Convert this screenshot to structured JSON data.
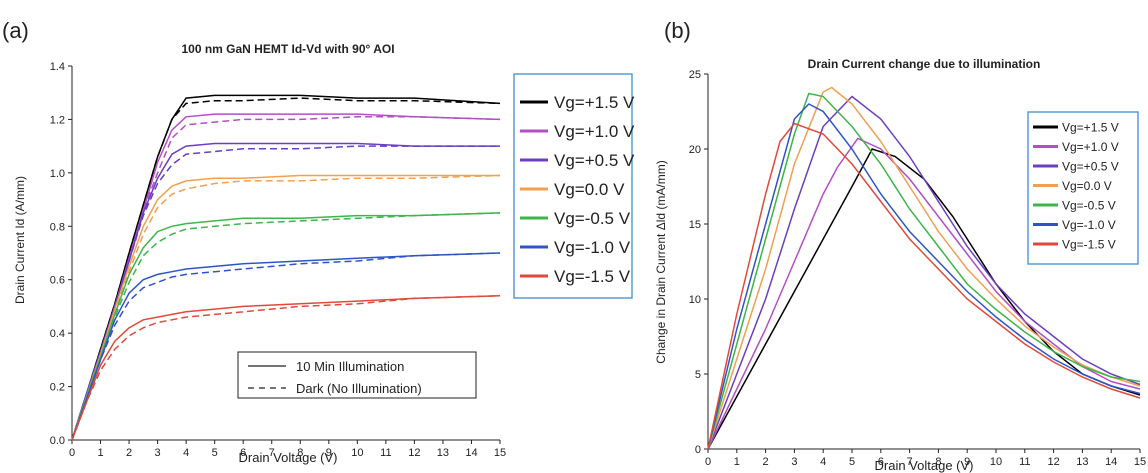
{
  "panels": [
    {
      "label": "(a)",
      "chart_data": {
        "type": "line",
        "title": "100 nm GaN HEMT Id-Vd with 90° AOI",
        "xlabel": "Drain Voltage (V)",
        "ylabel": "Drain Current Id (A/mm)",
        "xlim": [
          0,
          15
        ],
        "ylim": [
          0,
          1.4
        ],
        "xticks": [
          "0",
          "1",
          "2",
          "3",
          "4",
          "5",
          "6",
          "7",
          "8",
          "9",
          "10",
          "11",
          "12",
          "13",
          "14",
          "15"
        ],
        "yticks": [
          "0.0",
          "0.2",
          "0.4",
          "0.6",
          "0.8",
          "1.0",
          "1.2",
          "1.4"
        ],
        "grid": false,
        "legend_placement": "right",
        "style_legend": {
          "placement": "bottom-right",
          "entries": [
            {
              "label": "10 Min Illumination",
              "style": "solid"
            },
            {
              "label": "Dark (No Illumination)",
              "style": "dashed"
            }
          ]
        },
        "series": [
          {
            "name": "Vg=+1.5 V",
            "color": "#000000",
            "illuminated": {
              "x": [
                0,
                0.5,
                1,
                1.5,
                2,
                2.5,
                3,
                3.5,
                4,
                5,
                6,
                8,
                10,
                12,
                15
              ],
              "y": [
                0,
                0.17,
                0.34,
                0.51,
                0.7,
                0.88,
                1.06,
                1.2,
                1.28,
                1.29,
                1.29,
                1.29,
                1.28,
                1.28,
                1.26
              ]
            },
            "dark": {
              "x": [
                0,
                0.5,
                1,
                1.5,
                2,
                2.5,
                3,
                3.5,
                4,
                5,
                6,
                8,
                10,
                12,
                15
              ],
              "y": [
                0,
                0.17,
                0.34,
                0.51,
                0.7,
                0.88,
                1.06,
                1.2,
                1.26,
                1.27,
                1.27,
                1.28,
                1.27,
                1.27,
                1.26
              ]
            }
          },
          {
            "name": "Vg=+1.0 V",
            "color": "#b24fc6",
            "illuminated": {
              "x": [
                0,
                0.5,
                1,
                1.5,
                2,
                2.5,
                3,
                3.5,
                4,
                5,
                6,
                8,
                10,
                12,
                15
              ],
              "y": [
                0,
                0.17,
                0.33,
                0.5,
                0.68,
                0.86,
                1.04,
                1.16,
                1.21,
                1.22,
                1.22,
                1.22,
                1.22,
                1.21,
                1.2
              ]
            },
            "dark": {
              "x": [
                0,
                0.5,
                1,
                1.5,
                2,
                2.5,
                3,
                3.5,
                4,
                5,
                6,
                8,
                10,
                12,
                15
              ],
              "y": [
                0,
                0.17,
                0.33,
                0.5,
                0.68,
                0.86,
                1.0,
                1.13,
                1.18,
                1.19,
                1.2,
                1.2,
                1.21,
                1.21,
                1.2
              ]
            }
          },
          {
            "name": "Vg=+0.5 V",
            "color": "#6a3fc2",
            "illuminated": {
              "x": [
                0,
                0.5,
                1,
                1.5,
                2,
                2.5,
                3,
                3.5,
                4,
                5,
                6,
                8,
                10,
                12,
                15
              ],
              "y": [
                0,
                0.17,
                0.33,
                0.5,
                0.67,
                0.85,
                0.98,
                1.07,
                1.1,
                1.11,
                1.11,
                1.11,
                1.11,
                1.1,
                1.1
              ]
            },
            "dark": {
              "x": [
                0,
                0.5,
                1,
                1.5,
                2,
                2.5,
                3,
                3.5,
                4,
                5,
                6,
                8,
                10,
                12,
                15
              ],
              "y": [
                0,
                0.17,
                0.33,
                0.5,
                0.67,
                0.84,
                0.96,
                1.03,
                1.07,
                1.08,
                1.09,
                1.09,
                1.1,
                1.1,
                1.1
              ]
            }
          },
          {
            "name": "Vg=0.0 V",
            "color": "#f0a050",
            "illuminated": {
              "x": [
                0,
                0.5,
                1,
                1.5,
                2,
                2.5,
                3,
                3.5,
                4,
                5,
                6,
                8,
                10,
                12,
                15
              ],
              "y": [
                0,
                0.16,
                0.32,
                0.49,
                0.65,
                0.8,
                0.9,
                0.95,
                0.97,
                0.98,
                0.98,
                0.99,
                0.99,
                0.99,
                0.99
              ]
            },
            "dark": {
              "x": [
                0,
                0.5,
                1,
                1.5,
                2,
                2.5,
                3,
                3.5,
                4,
                5,
                6,
                8,
                10,
                12,
                15
              ],
              "y": [
                0,
                0.16,
                0.32,
                0.48,
                0.63,
                0.77,
                0.87,
                0.92,
                0.94,
                0.96,
                0.97,
                0.97,
                0.98,
                0.98,
                0.99
              ]
            }
          },
          {
            "name": "Vg=-0.5 V",
            "color": "#3db54a",
            "illuminated": {
              "x": [
                0,
                0.5,
                1,
                1.5,
                2,
                2.5,
                3,
                3.5,
                4,
                5,
                6,
                8,
                10,
                12,
                15
              ],
              "y": [
                0,
                0.16,
                0.31,
                0.47,
                0.62,
                0.72,
                0.78,
                0.8,
                0.81,
                0.82,
                0.83,
                0.83,
                0.84,
                0.84,
                0.85
              ]
            },
            "dark": {
              "x": [
                0,
                0.5,
                1,
                1.5,
                2,
                2.5,
                3,
                3.5,
                4,
                5,
                6,
                8,
                10,
                12,
                15
              ],
              "y": [
                0,
                0.16,
                0.31,
                0.46,
                0.59,
                0.69,
                0.74,
                0.77,
                0.79,
                0.8,
                0.81,
                0.82,
                0.83,
                0.84,
                0.85
              ]
            }
          },
          {
            "name": "Vg=-1.0 V",
            "color": "#2f54c8",
            "illuminated": {
              "x": [
                0,
                0.5,
                1,
                1.5,
                2,
                2.5,
                3,
                3.5,
                4,
                5,
                6,
                8,
                10,
                12,
                15
              ],
              "y": [
                0,
                0.15,
                0.3,
                0.45,
                0.55,
                0.6,
                0.62,
                0.63,
                0.64,
                0.65,
                0.66,
                0.67,
                0.68,
                0.69,
                0.7
              ]
            },
            "dark": {
              "x": [
                0,
                0.5,
                1,
                1.5,
                2,
                2.5,
                3,
                3.5,
                4,
                5,
                6,
                8,
                10,
                12,
                15
              ],
              "y": [
                0,
                0.15,
                0.3,
                0.43,
                0.52,
                0.57,
                0.59,
                0.61,
                0.62,
                0.63,
                0.64,
                0.66,
                0.67,
                0.69,
                0.7
              ]
            }
          },
          {
            "name": "Vg=-1.5 V",
            "color": "#e04a3a",
            "illuminated": {
              "x": [
                0,
                0.5,
                1,
                1.5,
                2,
                2.5,
                3,
                3.5,
                4,
                5,
                6,
                8,
                10,
                12,
                15
              ],
              "y": [
                0,
                0.14,
                0.28,
                0.37,
                0.42,
                0.45,
                0.46,
                0.47,
                0.48,
                0.49,
                0.5,
                0.51,
                0.52,
                0.53,
                0.54
              ]
            },
            "dark": {
              "x": [
                0,
                0.5,
                1,
                1.5,
                2,
                2.5,
                3,
                3.5,
                4,
                5,
                6,
                8,
                10,
                12,
                15
              ],
              "y": [
                0,
                0.14,
                0.26,
                0.34,
                0.39,
                0.42,
                0.44,
                0.45,
                0.46,
                0.47,
                0.48,
                0.5,
                0.51,
                0.53,
                0.54
              ]
            }
          }
        ]
      }
    },
    {
      "label": "(b)",
      "chart_data": {
        "type": "line",
        "title": "Drain Current change due to illumination",
        "xlabel": "Drain Voltage (V)",
        "ylabel": "Change in Drain Current Δld (mA/mm)",
        "xlim": [
          0,
          15
        ],
        "ylim": [
          0,
          25
        ],
        "xticks": [
          "0",
          "1",
          "2",
          "3",
          "4",
          "5",
          "6",
          "7",
          "8",
          "9",
          "10",
          "11",
          "12",
          "13",
          "14",
          "15"
        ],
        "yticks": [
          "0",
          "5",
          "10",
          "15",
          "20",
          "25"
        ],
        "grid": false,
        "legend_placement": "right",
        "series": [
          {
            "name": "Vg=+1.5 V",
            "color": "#000000",
            "x": [
              0,
              1,
              2,
              3,
              4,
              5,
              5.7,
              6.5,
              7.5,
              8.5,
              10,
              11,
              12,
              13,
              14,
              15
            ],
            "y": [
              0,
              3.5,
              7,
              10.5,
              14,
              17.5,
              20,
              19.5,
              18,
              15.5,
              11,
              8.5,
              6.5,
              5,
              4.2,
              3.6
            ]
          },
          {
            "name": "Vg=+1.0 V",
            "color": "#b24fc6",
            "x": [
              0,
              1,
              2,
              3,
              4,
              4.5,
              5.2,
              6,
              7,
              8,
              9,
              10,
              11,
              12,
              13,
              14,
              15
            ],
            "y": [
              0,
              4,
              8,
              12.5,
              17,
              18.8,
              20.7,
              20,
              18,
              15.5,
              13,
              10.5,
              8.5,
              7,
              5.5,
              4.5,
              4
            ]
          },
          {
            "name": "Vg=+0.5 V",
            "color": "#6a3fc2",
            "x": [
              0,
              1,
              2,
              3,
              4,
              5,
              6,
              7,
              8,
              9,
              10,
              11,
              12,
              13,
              14,
              15
            ],
            "y": [
              0,
              5,
              10,
              16,
              21.5,
              23.5,
              22,
              19.5,
              16.5,
              13.5,
              11,
              9,
              7.5,
              6,
              5,
              4.3
            ]
          },
          {
            "name": "Vg=0.0 V",
            "color": "#f0a050",
            "x": [
              0,
              1,
              2,
              3,
              4,
              4.3,
              5,
              6,
              7,
              8,
              9,
              10,
              11,
              12,
              13,
              14,
              15
            ],
            "y": [
              0,
              6,
              12,
              19,
              23.8,
              24.1,
              23,
              20.5,
              17.5,
              14.5,
              12,
              10,
              8.2,
              6.8,
              5.6,
              4.8,
              4.2
            ]
          },
          {
            "name": "Vg=-0.5 V",
            "color": "#3db54a",
            "x": [
              0,
              1,
              2,
              3,
              3.5,
              4,
              5,
              6,
              7,
              8,
              9,
              10,
              11,
              12,
              13,
              14,
              15
            ],
            "y": [
              0,
              7,
              14,
              21,
              23.7,
              23.5,
              21.5,
              19,
              16,
              13.5,
              11,
              9.3,
              7.8,
              6.5,
              5.5,
              4.8,
              4.5
            ]
          },
          {
            "name": "Vg=-1.0 V",
            "color": "#2f54c8",
            "x": [
              0,
              1,
              2,
              3,
              3.5,
              4,
              5,
              6,
              7,
              8,
              9,
              10,
              11,
              12,
              13,
              14,
              15
            ],
            "y": [
              0,
              8,
              15,
              22,
              23,
              22.5,
              20,
              17,
              14.5,
              12.5,
              10.5,
              8.8,
              7.3,
              6,
              5,
              4.2,
              3.7
            ]
          },
          {
            "name": "Vg=-1.5 V",
            "color": "#e04a3a",
            "x": [
              0,
              1,
              2,
              2.5,
              3,
              4,
              5,
              6,
              7,
              8,
              9,
              10,
              11,
              12,
              13,
              14,
              15
            ],
            "y": [
              0,
              9,
              17,
              20.5,
              21.7,
              21,
              19,
              16.5,
              14,
              12,
              10,
              8.5,
              7,
              5.8,
              4.8,
              4,
              3.4
            ]
          }
        ]
      }
    }
  ]
}
